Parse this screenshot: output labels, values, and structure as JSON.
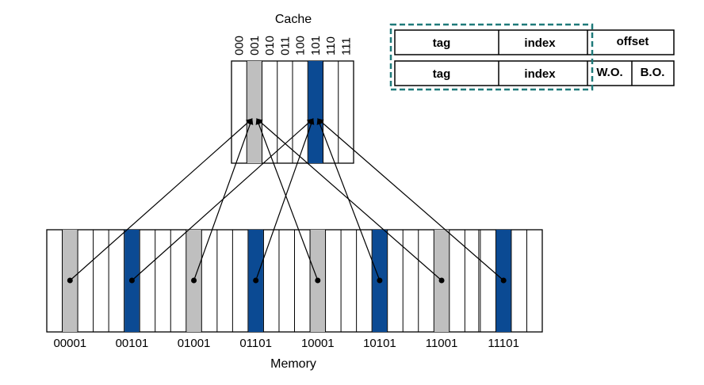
{
  "cache": {
    "title": "Cache",
    "index_labels": [
      "000",
      "001",
      "010",
      "011",
      "100",
      "101",
      "110",
      "111"
    ],
    "highlighted": {
      "001": "gray",
      "101": "blue"
    }
  },
  "memory": {
    "title": "Memory",
    "addresses": [
      "00001",
      "00101",
      "01001",
      "01101",
      "10001",
      "10101",
      "11001",
      "11101"
    ],
    "block_colors": [
      "gray",
      "blue",
      "gray",
      "blue",
      "gray",
      "blue",
      "gray",
      "blue"
    ],
    "maps_to_cache_index": [
      "001",
      "101",
      "001",
      "101",
      "001",
      "101",
      "001",
      "101"
    ]
  },
  "address_fields": {
    "row1": [
      "tag",
      "index",
      "offset"
    ],
    "row2": [
      "tag",
      "index",
      "W.O.",
      "B.O."
    ]
  },
  "colors": {
    "gray": "#bfbfbf",
    "blue": "#0b4a93",
    "dashed_box": "#1f7a7a",
    "line": "#000000"
  }
}
